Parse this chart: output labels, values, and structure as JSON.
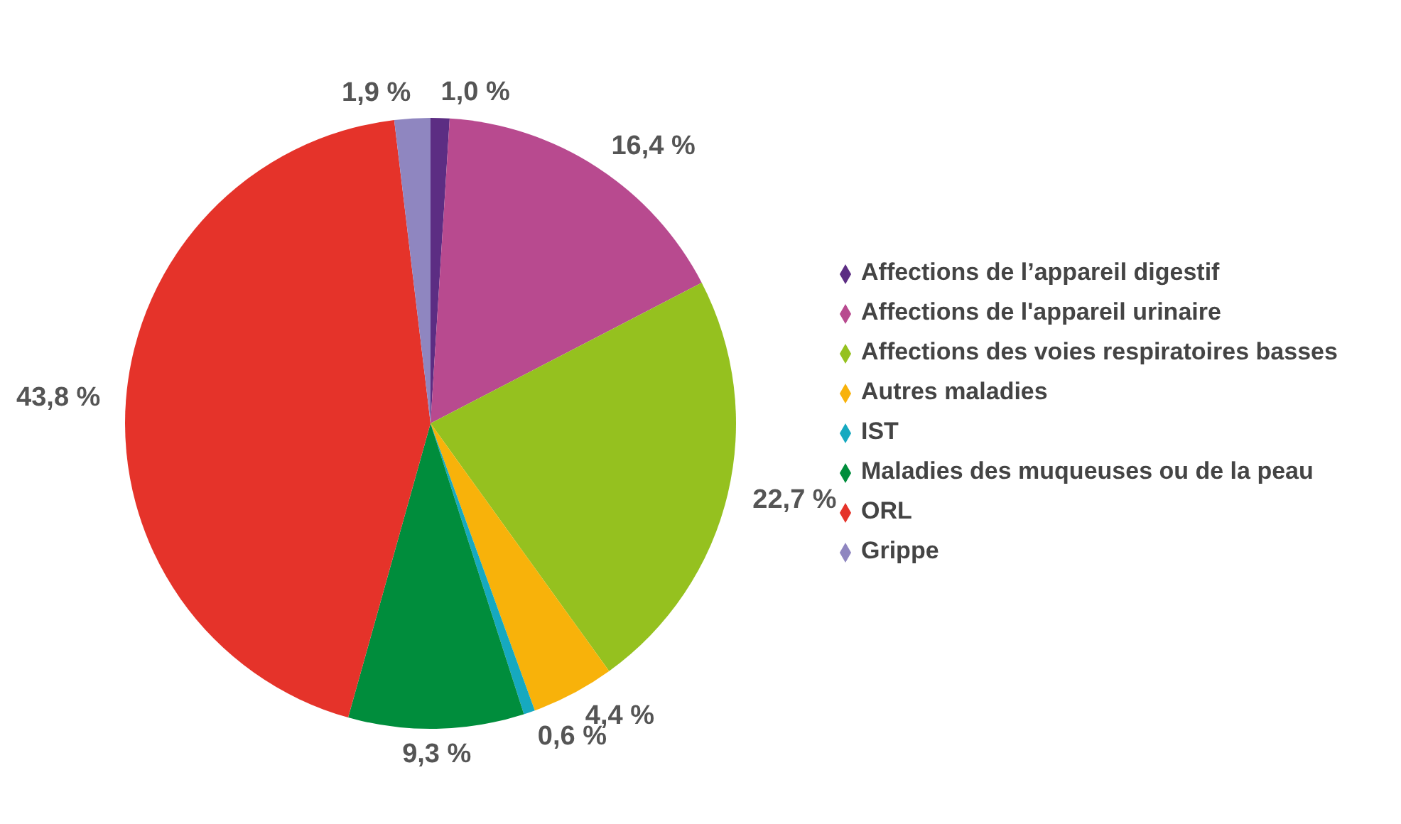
{
  "chart_data": {
    "type": "pie",
    "categories": [
      "Affections de l’appareil digestif",
      "Affections de l'appareil urinaire",
      "Affections des voies respiratoires basses",
      "Autres maladies",
      "IST",
      "Maladies des muqueuses ou de la peau",
      "ORL",
      "Grippe"
    ],
    "values": [
      1.0,
      16.4,
      22.7,
      4.4,
      0.6,
      9.3,
      43.8,
      1.9
    ],
    "value_labels": [
      "1,0 %",
      "16,4 %",
      "22,7 %",
      "4,4 %",
      "0,6 %",
      "9,3 %",
      "43,8 %",
      "1,9 %"
    ],
    "colors": [
      "#5c2d83",
      "#b84a8f",
      "#95c11f",
      "#f8b20a",
      "#16a9c0",
      "#008d3c",
      "#e5332a",
      "#8f86c0"
    ],
    "legend": "right"
  }
}
